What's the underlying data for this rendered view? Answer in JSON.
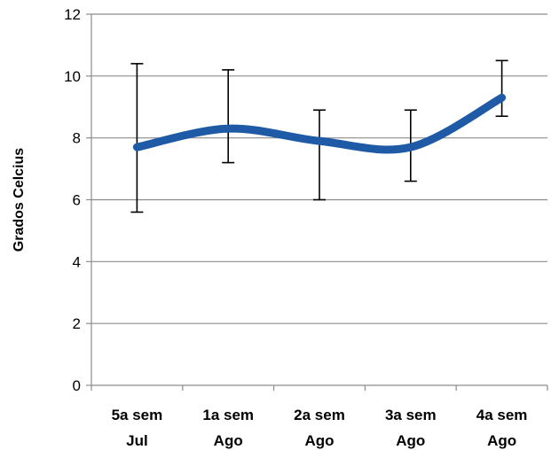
{
  "chart_data": {
    "type": "line",
    "title": "",
    "xlabel": "",
    "ylabel": "Grados Celcius",
    "ylim": [
      0,
      12
    ],
    "yticks": [
      0,
      2,
      4,
      6,
      8,
      10,
      12
    ],
    "grid": true,
    "smooth": true,
    "line_color": "#1f5aa6",
    "categories": [
      [
        "5a sem",
        "Jul"
      ],
      [
        "1a sem",
        "Ago"
      ],
      [
        "2a sem",
        "Ago"
      ],
      [
        "3a sem",
        "Ago"
      ],
      [
        "4a sem",
        "Ago"
      ]
    ],
    "series": [
      {
        "values": [
          7.7,
          8.3,
          7.9,
          7.7,
          9.3
        ],
        "error_low": [
          5.6,
          7.2,
          6.0,
          6.6,
          8.7
        ],
        "error_high": [
          10.4,
          10.2,
          8.9,
          8.9,
          10.5
        ]
      }
    ]
  }
}
